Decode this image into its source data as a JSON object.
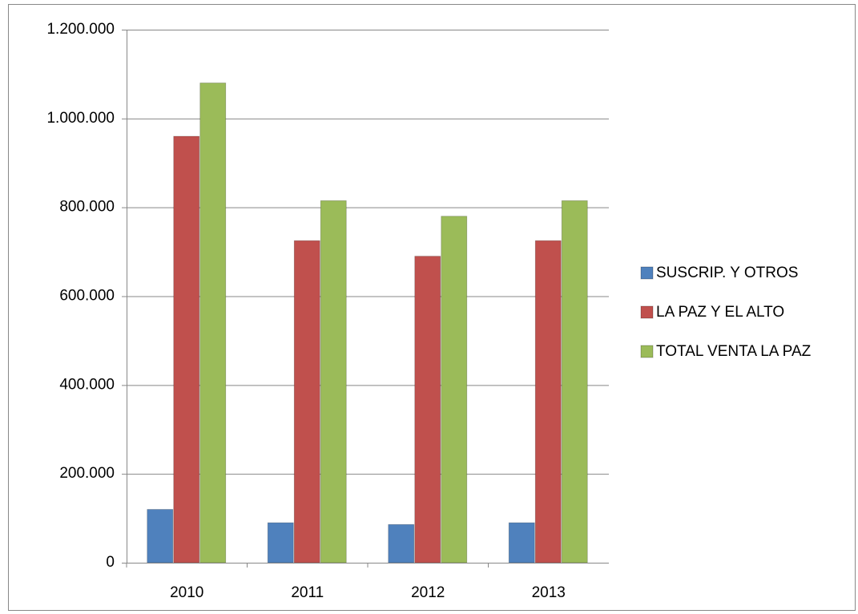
{
  "chart_data": {
    "type": "bar",
    "categories": [
      "2010",
      "2011",
      "2012",
      "2013"
    ],
    "series": [
      {
        "name": "SUSCRIP. Y OTROS",
        "color": "#4f81bd",
        "values": [
          120000,
          90000,
          86000,
          90000
        ]
      },
      {
        "name": "LA PAZ Y EL ALTO",
        "color": "#c0504d",
        "values": [
          960000,
          725000,
          690000,
          725000
        ]
      },
      {
        "name": "TOTAL VENTA LA PAZ",
        "color": "#9bbb59",
        "values": [
          1080000,
          815000,
          780000,
          815000
        ]
      }
    ],
    "ylim": [
      0,
      1200000
    ],
    "yticks": [
      0,
      {
        "value": 200000,
        "label": "200.000"
      },
      {
        "value": 400000,
        "label": "400.000"
      },
      {
        "value": 600000,
        "label": "600.000"
      },
      {
        "value": 800000,
        "label": "800.000"
      },
      {
        "value": 1000000,
        "label": "1.000.000"
      },
      {
        "value": 1200000,
        "label": "1.200.000"
      }
    ],
    "grid": true,
    "legend": "right"
  }
}
